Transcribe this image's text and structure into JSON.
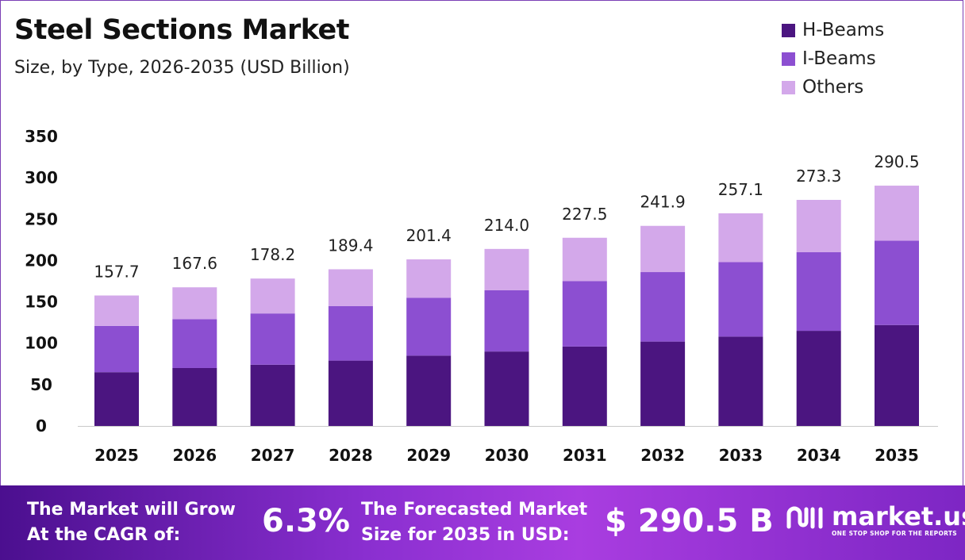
{
  "title": "Steel Sections Market",
  "subtitle": "Size, by Type, 2026-2035 (USD Billion)",
  "legend": [
    {
      "label": "H-Beams",
      "color": "#4b1580"
    },
    {
      "label": "I-Beams",
      "color": "#8c4fd1"
    },
    {
      "label": "Others",
      "color": "#d3a8ea"
    }
  ],
  "chart_data": {
    "type": "bar",
    "stacked": true,
    "categories": [
      "2025",
      "2026",
      "2027",
      "2028",
      "2029",
      "2030",
      "2031",
      "2032",
      "2033",
      "2034",
      "2035"
    ],
    "series": [
      {
        "name": "H-Beams",
        "values": [
          65,
          70,
          74,
          79,
          85,
          90,
          96,
          102,
          108,
          115,
          122
        ]
      },
      {
        "name": "I-Beams",
        "values": [
          56,
          59,
          62,
          66,
          70,
          74,
          79,
          84,
          90,
          95,
          102
        ]
      },
      {
        "name": "Others",
        "values": [
          36.7,
          38.6,
          42.2,
          44.4,
          46.4,
          50.0,
          52.5,
          55.9,
          59.1,
          63.3,
          66.5
        ]
      }
    ],
    "totals": [
      "157.7",
      "167.6",
      "178.2",
      "189.4",
      "201.4",
      "214.0",
      "227.5",
      "241.9",
      "257.1",
      "273.3",
      "290.5"
    ],
    "ylim": [
      0,
      350
    ],
    "yticks": [
      0,
      50,
      100,
      150,
      200,
      250,
      300,
      350
    ],
    "grid": false,
    "legend_position": "top-right",
    "xlabel": "",
    "ylabel": ""
  },
  "footer": {
    "cagr_label_line1": "The Market will Grow",
    "cagr_label_line2": "At the CAGR of:",
    "cagr_value": "6.3%",
    "forecast_label_line1": "The Forecasted Market",
    "forecast_label_line2": "Size for 2035 in USD:",
    "forecast_value": "$ 290.5 B",
    "brand_name": "market.us",
    "brand_tagline": "ONE STOP SHOP FOR THE REPORTS"
  }
}
